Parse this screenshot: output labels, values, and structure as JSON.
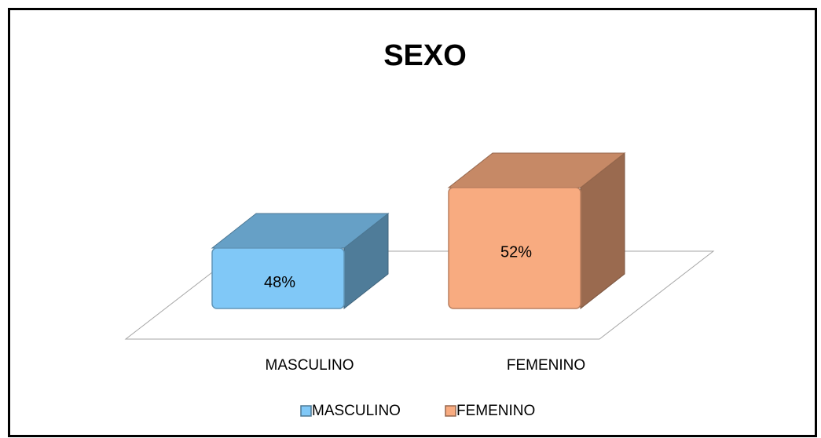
{
  "chart_data": {
    "type": "bar",
    "title": "SEXO",
    "categories": [
      "MASCULINO",
      "FEMENINO"
    ],
    "values": [
      48,
      52
    ],
    "value_labels": [
      "48%",
      "52%"
    ],
    "colors": [
      "#80c8f7",
      "#f8ab80"
    ],
    "ylim": [
      44,
      54
    ]
  }
}
